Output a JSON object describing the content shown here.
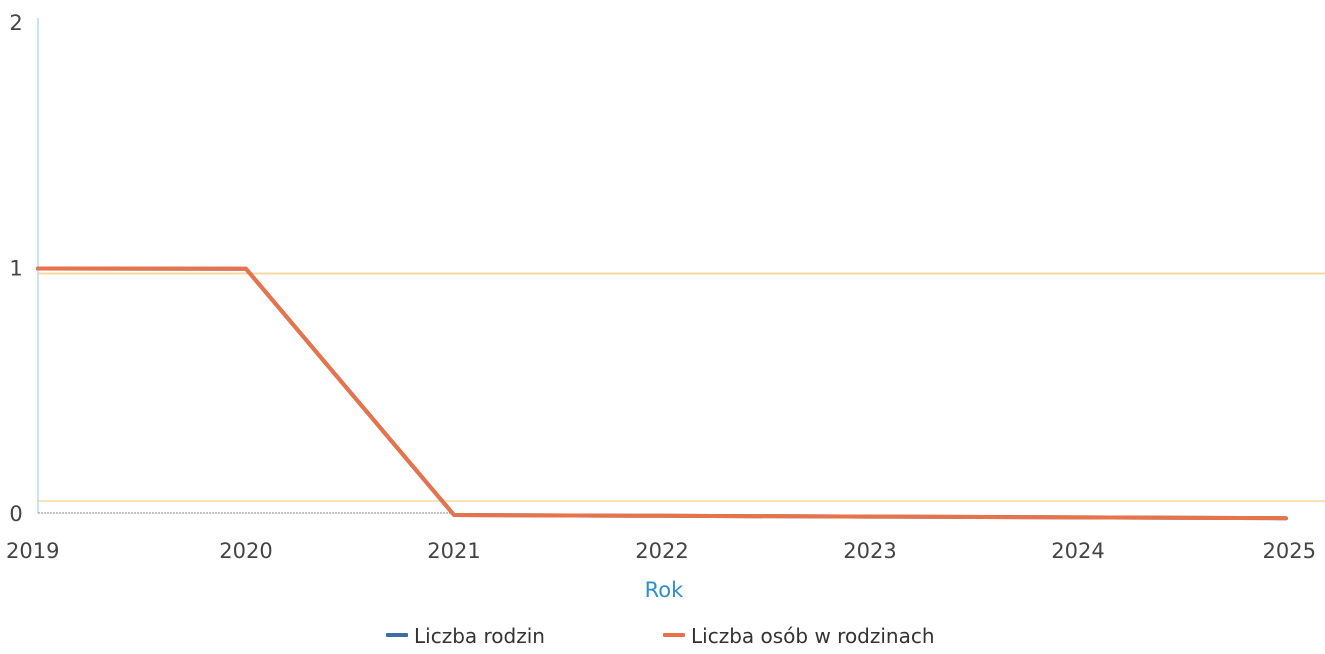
{
  "chart_data": {
    "type": "line",
    "x": [
      2019,
      2020,
      2021,
      2022,
      2023,
      2024,
      2025
    ],
    "x_tick_labels": [
      "2019",
      "2020",
      "2021",
      "2022",
      "2023",
      "2024",
      "2025"
    ],
    "xlabel": "Rok",
    "ylabel": "",
    "ylim": [
      0,
      2
    ],
    "y_ticks": [
      0,
      1,
      2
    ],
    "y_tick_labels": [
      "0",
      "1",
      "2"
    ],
    "grid": "horizontal",
    "legend_position": "bottom",
    "series": [
      {
        "name": "Liczba rodzin",
        "color": "#3a6ea5",
        "values": [
          1,
          1,
          0,
          0,
          0,
          0,
          0
        ]
      },
      {
        "name": "Liczba osób w rodzinach",
        "color": "#e8734a",
        "values": [
          1,
          1,
          0,
          0,
          0,
          0,
          0
        ]
      }
    ],
    "colors": {
      "gridline": "#f6d9a0",
      "y_axis": "#b9dcf2",
      "x_axis": "#888888",
      "axis_title": "#2e8fd0"
    }
  }
}
